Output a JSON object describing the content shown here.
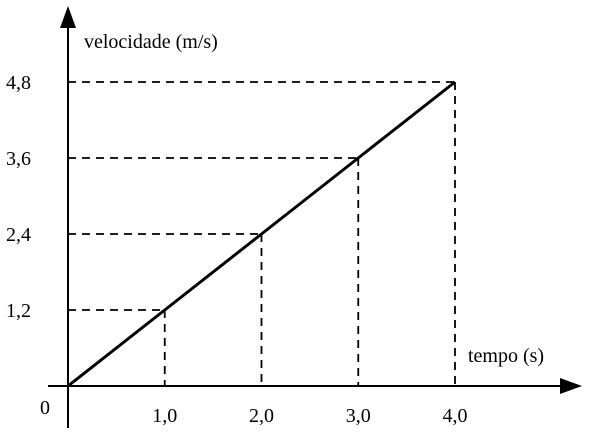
{
  "chart_data": {
    "type": "line",
    "x": [
      0,
      1.0,
      2.0,
      3.0,
      4.0
    ],
    "y": [
      0,
      1.2,
      2.4,
      3.6,
      4.8
    ],
    "xlabel": "tempo (s)",
    "ylabel": "velocidade (m/s)",
    "origin_label": "0",
    "x_ticks": [
      1.0,
      2.0,
      3.0,
      4.0
    ],
    "x_tick_labels": [
      "1,0",
      "2,0",
      "3,0",
      "4,0"
    ],
    "y_ticks": [
      1.2,
      2.4,
      3.6,
      4.8
    ],
    "y_tick_labels": [
      "1,2",
      "2,4",
      "3,6",
      "4,8"
    ],
    "guide_points": [
      {
        "x": 1.0,
        "y": 1.2
      },
      {
        "x": 2.0,
        "y": 2.4
      },
      {
        "x": 3.0,
        "y": 3.6
      },
      {
        "x": 4.0,
        "y": 4.8
      }
    ],
    "xlim": [
      0,
      4.0
    ],
    "ylim": [
      0,
      4.8
    ],
    "grid": false,
    "line_color": "#000000"
  }
}
